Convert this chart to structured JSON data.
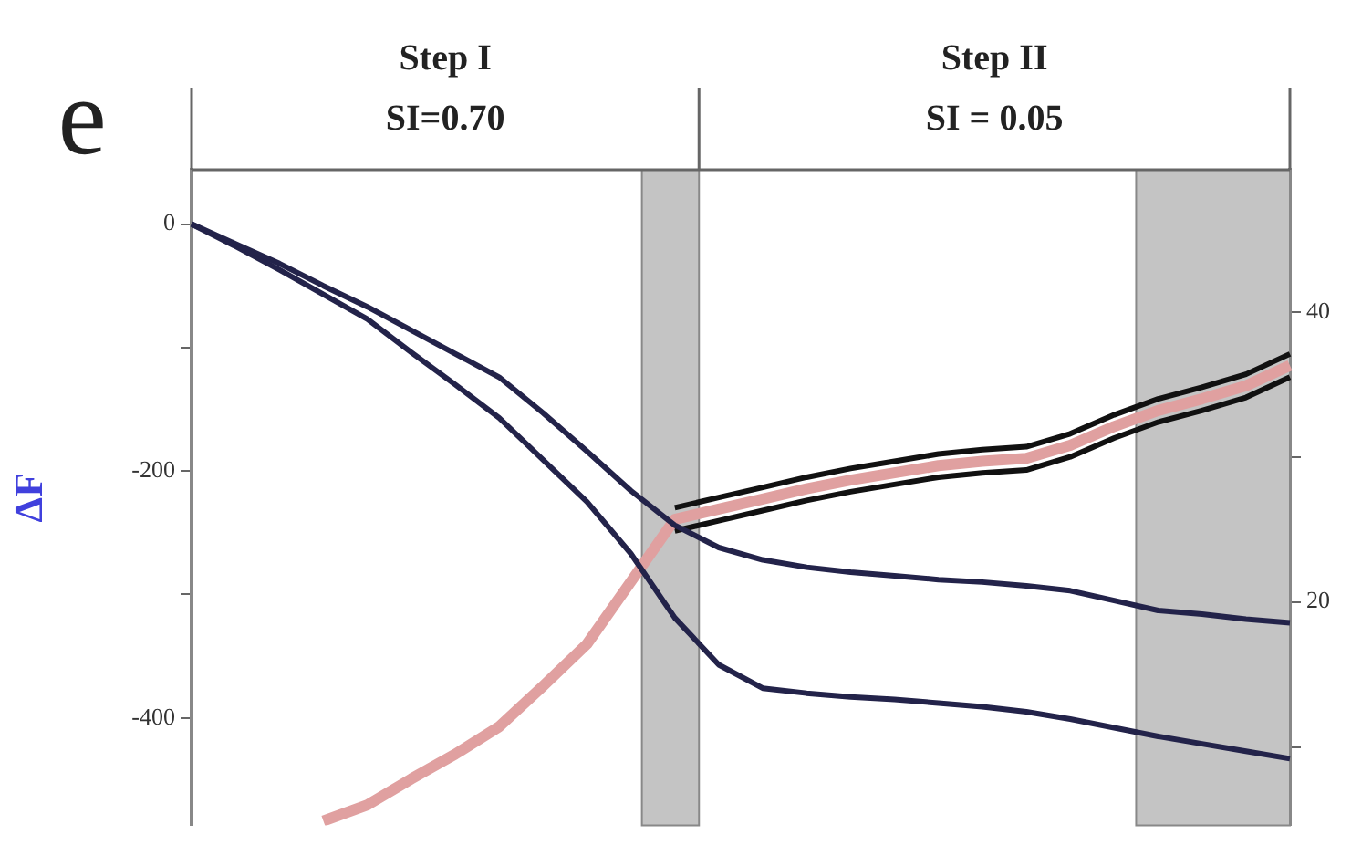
{
  "chart_data": {
    "type": "line",
    "ylabel": "ΔF",
    "annotations": [
      "e",
      "Step I",
      "SI=0.70",
      "Step II",
      "SI = 0.05"
    ],
    "categories": [
      null,
      null,
      null,
      null,
      null,
      null,
      null,
      null,
      null,
      null,
      null,
      null,
      null,
      null,
      null,
      null,
      null,
      null,
      null,
      null,
      null,
      null,
      null,
      null,
      null,
      null
    ],
    "ylim": [
      -487,
      44
    ],
    "yticks": [
      0,
      {
        "value": -100,
        "label": null
      },
      -200,
      {
        "value": -300,
        "label": null
      },
      -400
    ],
    "y2lim": [
      4.6,
      49.8
    ],
    "y2ticks": [
      {
        "value": 10,
        "label": null
      },
      20,
      {
        "value": 30,
        "label": null
      },
      40
    ],
    "grid": false,
    "legend": false,
    "marker": "none",
    "line_style": "solid",
    "series": [
      {
        "color": "#23234a",
        "values": [
          0,
          -16,
          -32,
          -50,
          -67,
          -86,
          -105,
          -124,
          -153,
          -184,
          -216,
          -244,
          -262,
          -272,
          -278,
          -282,
          -285,
          -288,
          -290,
          -293,
          -297,
          -305,
          -313,
          -316,
          -320,
          -323
        ]
      },
      {
        "color": "#23234a",
        "values": [
          0,
          -18,
          -37,
          -57,
          -77,
          -104,
          -130,
          -157,
          -191,
          -225,
          -267,
          -319,
          -357,
          -376,
          -380,
          -383,
          -385,
          -388,
          -391,
          -395,
          -401,
          -408,
          -415,
          -421,
          -427,
          -433
        ]
      },
      {
        "color": "#e0a0a0",
        "axis": "y2",
        "values": [
          null,
          null,
          null,
          4.9,
          6,
          7.8,
          9.5,
          11.4,
          14.2,
          17.1,
          21.4,
          25.7,
          26.4,
          27.1,
          27.8,
          28.4,
          28.9,
          29.4,
          29.7,
          29.9,
          30.8,
          32.1,
          33.2,
          34,
          34.9,
          36.3
        ]
      },
      {
        "color": "#111111",
        "axis": "y2",
        "values": [
          null,
          null,
          null,
          null,
          null,
          null,
          null,
          null,
          null,
          null,
          null,
          24.9,
          25.6,
          26.3,
          27,
          27.6,
          28.1,
          28.6,
          28.9,
          29.1,
          30,
          31.3,
          32.4,
          33.2,
          34.1,
          35.5
        ]
      },
      {
        "color": "#111111",
        "axis": "y2",
        "values": [
          null,
          null,
          null,
          null,
          null,
          null,
          null,
          null,
          null,
          null,
          null,
          26.5,
          27.2,
          27.9,
          28.6,
          29.2,
          29.7,
          30.2,
          30.5,
          30.7,
          31.6,
          32.9,
          34,
          34.8,
          35.7,
          37.1
        ]
      }
    ]
  }
}
